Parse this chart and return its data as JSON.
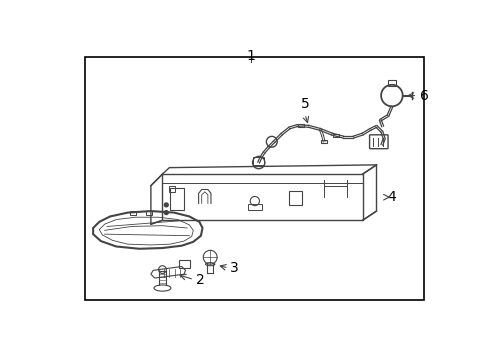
{
  "background_color": "#ffffff",
  "border_color": "#000000",
  "line_color": "#444444",
  "text_color": "#000000",
  "label_fontsize": 10,
  "border": [
    0.06,
    0.05,
    0.9,
    0.87
  ]
}
